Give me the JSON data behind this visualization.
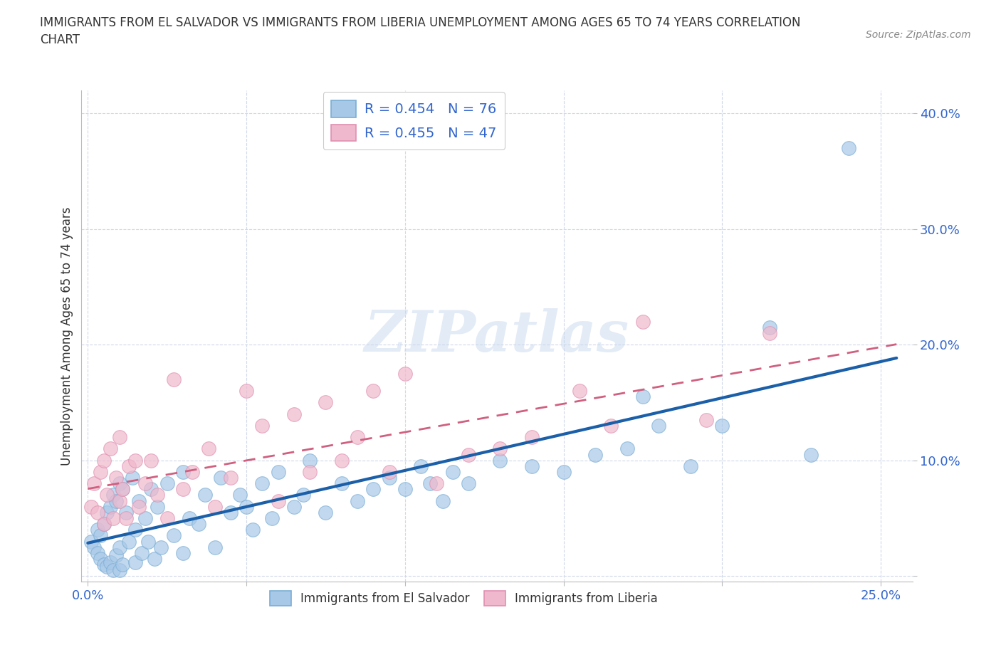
{
  "title": "IMMIGRANTS FROM EL SALVADOR VS IMMIGRANTS FROM LIBERIA UNEMPLOYMENT AMONG AGES 65 TO 74 YEARS CORRELATION\nCHART",
  "source": "Source: ZipAtlas.com",
  "ylabel": "Unemployment Among Ages 65 to 74 years",
  "xlim": [
    -0.002,
    0.26
  ],
  "ylim": [
    -0.005,
    0.42
  ],
  "xticks": [
    0.0,
    0.05,
    0.1,
    0.15,
    0.2,
    0.25
  ],
  "yticks": [
    0.0,
    0.1,
    0.2,
    0.3,
    0.4
  ],
  "xticklabels": [
    "0.0%",
    "",
    "",
    "",
    "",
    "25.0%"
  ],
  "yticklabels": [
    "",
    "10.0%",
    "20.0%",
    "30.0%",
    "40.0%"
  ],
  "legend1_label1": "R = 0.454   N = 76",
  "legend1_label2": "R = 0.455   N = 47",
  "legend2_label1": "Immigrants from El Salvador",
  "legend2_label2": "Immigrants from Liberia",
  "es_scatter_color": "#a8c8e8",
  "es_scatter_edge": "#7aaed4",
  "es_line_color": "#1a5fa8",
  "lib_scatter_color": "#f0b8cc",
  "lib_scatter_edge": "#e090b0",
  "lib_line_color": "#d06080",
  "watermark": "ZIPatlas",
  "background_color": "#ffffff",
  "grid_color": "#d0d8e8",
  "legend_text_color": "#3366cc",
  "title_color": "#333333",
  "ylabel_color": "#333333",
  "tick_color": "#3366cc",
  "el_salvador_x": [
    0.001,
    0.002,
    0.003,
    0.003,
    0.004,
    0.004,
    0.005,
    0.005,
    0.006,
    0.006,
    0.007,
    0.007,
    0.008,
    0.008,
    0.009,
    0.009,
    0.01,
    0.01,
    0.01,
    0.011,
    0.011,
    0.012,
    0.013,
    0.014,
    0.015,
    0.015,
    0.016,
    0.017,
    0.018,
    0.019,
    0.02,
    0.021,
    0.022,
    0.023,
    0.025,
    0.027,
    0.03,
    0.03,
    0.032,
    0.035,
    0.037,
    0.04,
    0.042,
    0.045,
    0.048,
    0.05,
    0.052,
    0.055,
    0.058,
    0.06,
    0.065,
    0.068,
    0.07,
    0.075,
    0.08,
    0.085,
    0.09,
    0.095,
    0.1,
    0.105,
    0.108,
    0.112,
    0.115,
    0.12,
    0.13,
    0.14,
    0.15,
    0.16,
    0.17,
    0.175,
    0.18,
    0.19,
    0.2,
    0.215,
    0.228,
    0.24
  ],
  "el_salvador_y": [
    0.03,
    0.025,
    0.04,
    0.02,
    0.035,
    0.015,
    0.045,
    0.01,
    0.055,
    0.008,
    0.06,
    0.012,
    0.07,
    0.005,
    0.065,
    0.018,
    0.08,
    0.025,
    0.005,
    0.075,
    0.01,
    0.055,
    0.03,
    0.085,
    0.04,
    0.012,
    0.065,
    0.02,
    0.05,
    0.03,
    0.075,
    0.015,
    0.06,
    0.025,
    0.08,
    0.035,
    0.02,
    0.09,
    0.05,
    0.045,
    0.07,
    0.025,
    0.085,
    0.055,
    0.07,
    0.06,
    0.04,
    0.08,
    0.05,
    0.09,
    0.06,
    0.07,
    0.1,
    0.055,
    0.08,
    0.065,
    0.075,
    0.085,
    0.075,
    0.095,
    0.08,
    0.065,
    0.09,
    0.08,
    0.1,
    0.095,
    0.09,
    0.105,
    0.11,
    0.155,
    0.13,
    0.095,
    0.13,
    0.215,
    0.105,
    0.37
  ],
  "liberia_x": [
    0.001,
    0.002,
    0.003,
    0.004,
    0.005,
    0.005,
    0.006,
    0.007,
    0.008,
    0.009,
    0.01,
    0.01,
    0.011,
    0.012,
    0.013,
    0.015,
    0.016,
    0.018,
    0.02,
    0.022,
    0.025,
    0.027,
    0.03,
    0.033,
    0.038,
    0.04,
    0.045,
    0.05,
    0.055,
    0.06,
    0.065,
    0.07,
    0.075,
    0.08,
    0.085,
    0.09,
    0.095,
    0.1,
    0.11,
    0.12,
    0.13,
    0.14,
    0.155,
    0.165,
    0.175,
    0.195,
    0.215
  ],
  "liberia_y": [
    0.06,
    0.08,
    0.055,
    0.09,
    0.045,
    0.1,
    0.07,
    0.11,
    0.05,
    0.085,
    0.065,
    0.12,
    0.075,
    0.05,
    0.095,
    0.1,
    0.06,
    0.08,
    0.1,
    0.07,
    0.05,
    0.17,
    0.075,
    0.09,
    0.11,
    0.06,
    0.085,
    0.16,
    0.13,
    0.065,
    0.14,
    0.09,
    0.15,
    0.1,
    0.12,
    0.16,
    0.09,
    0.175,
    0.08,
    0.105,
    0.11,
    0.12,
    0.16,
    0.13,
    0.22,
    0.135,
    0.21
  ]
}
